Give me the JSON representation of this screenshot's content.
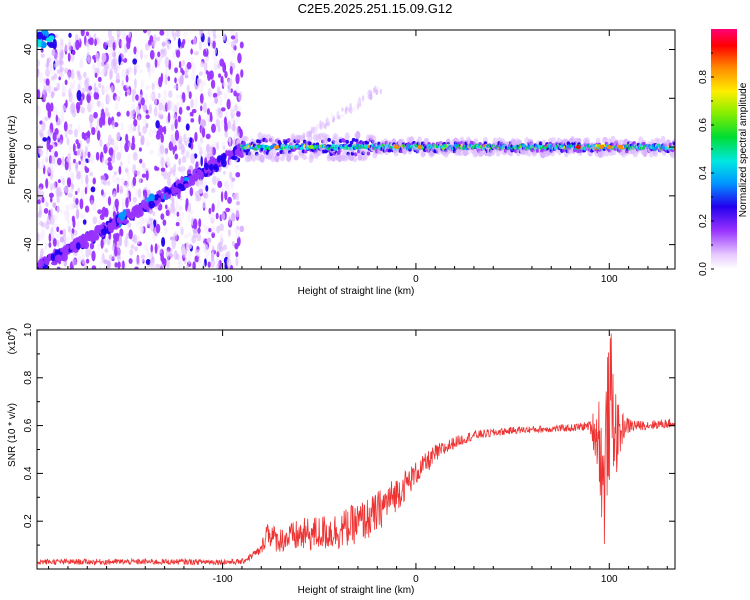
{
  "title": "C2E5.2025.251.15.09.G12",
  "colors": {
    "line": "#ee3333",
    "axis": "#000000"
  },
  "chart_data": [
    {
      "type": "heatmap",
      "name": "spectrogram",
      "xlabel": "Height of straight line (km)",
      "ylabel": "Frequency (Hz)",
      "xlim": [
        -196,
        134
      ],
      "ylim": [
        -50,
        48
      ],
      "x_ticks": [
        -100,
        0,
        100
      ],
      "x_tick_labels": [
        "-100",
        "0",
        "100"
      ],
      "y_ticks": [
        -40,
        -20,
        0,
        20,
        40
      ],
      "y_tick_labels": [
        "-40",
        "-20",
        "0",
        "20",
        "40"
      ],
      "colorbar": {
        "label": "Normalized spectral amplitude",
        "range": [
          0,
          1
        ],
        "ticks": [
          0,
          0.2,
          0.4,
          0.6,
          0.8
        ],
        "tick_labels": [
          "0.0",
          "0.2",
          "0.4",
          "0.6",
          "0.8"
        ]
      },
      "features": {
        "noise_region_x": [
          -196,
          -90
        ],
        "diagonal_band": {
          "start": [
            -196,
            -50
          ],
          "end": [
            -88,
            0
          ]
        },
        "carrier_band": {
          "x": [
            -90,
            134
          ],
          "freq": 0,
          "peak_amplitude": 0.9
        },
        "secondary_band": {
          "start": [
            -60,
            3
          ],
          "end": [
            -18,
            24
          ]
        }
      }
    },
    {
      "type": "line",
      "name": "snr",
      "xlabel": "Height of straight line (km)",
      "ylabel": "SNR (10 * v/v)",
      "scale_label": "(x10",
      "scale_exponent": "4",
      "scale_suffix": ")",
      "xlim": [
        -196,
        134
      ],
      "ylim": [
        0,
        1.0
      ],
      "x_ticks": [
        -100,
        0,
        100
      ],
      "x_tick_labels": [
        "-100",
        "0",
        "100"
      ],
      "y_ticks": [
        0.2,
        0.4,
        0.6,
        0.8,
        1.0
      ],
      "y_tick_labels": [
        "0.2",
        "0.4",
        "0.6",
        "0.8",
        "1.0"
      ],
      "series": [
        {
          "name": "SNR",
          "envelope_x": [
            -196,
            -90,
            -80,
            -77,
            -72,
            -60,
            -40,
            -22,
            -15,
            -8,
            0,
            10,
            20,
            30,
            50,
            80,
            90,
            95,
            97,
            99,
            101,
            104,
            108,
            115,
            134
          ],
          "envelope_y": [
            0.03,
            0.03,
            0.08,
            0.16,
            0.12,
            0.14,
            0.16,
            0.22,
            0.28,
            0.33,
            0.4,
            0.48,
            0.53,
            0.56,
            0.58,
            0.59,
            0.6,
            0.55,
            0.3,
            0.6,
            0.7,
            0.55,
            0.6,
            0.6,
            0.61
          ],
          "noise_amplitude": [
            0.012,
            0.012,
            0.02,
            0.06,
            0.05,
            0.07,
            0.08,
            0.09,
            0.08,
            0.07,
            0.05,
            0.04,
            0.025,
            0.02,
            0.015,
            0.015,
            0.02,
            0.2,
            0.3,
            0.3,
            0.3,
            0.15,
            0.04,
            0.02,
            0.02
          ]
        }
      ]
    }
  ]
}
